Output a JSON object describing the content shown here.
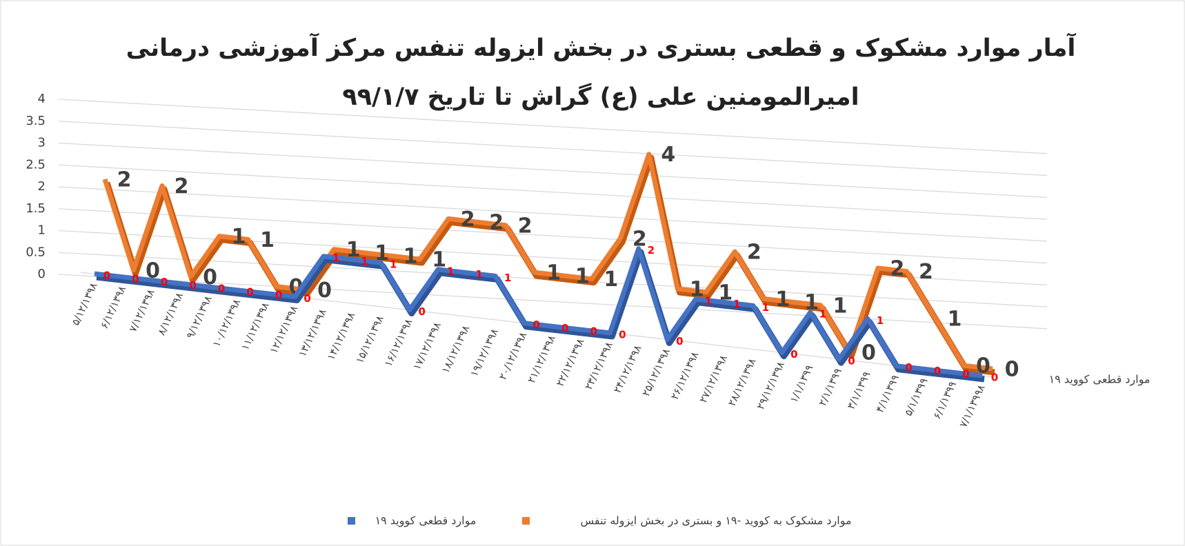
{
  "chart_data": {
    "type": "line3d",
    "title": [
      "آمار موارد مشکوک و قطعی بستری در بخش ایزوله تنفس مرکز آموزشی درمانی",
      "امیرالمومنین علی (ع) گراش تا تاریخ ۹۹/۱/۷"
    ],
    "categories": [
      "۵/۱۲/۱۳۹۸",
      "۶/۱۲/۱۳۹۸",
      "۷/۱۲/۱۳۹۸",
      "۸/۱۲/۱۳۹۸",
      "۹/۱۲/۱۳۹۸",
      "۱۰/۱۲/۱۳۹۸",
      "۱۱/۱۲/۱۳۹۸",
      "۱۲/۱۲/۱۳۹۸",
      "۱۳/۱۲/۱۳۹۸",
      "۱۴/۱۲/۱۳۹۸",
      "۱۵/۱۲/۱۳۹۸",
      "۱۶/۱۲/۱۳۹۸",
      "۱۷/۱۲/۱۳۹۸",
      "۱۸/۱۲/۱۳۹۸",
      "۱۹/۱۲/۱۳۹۸",
      "۲۰/۱۲/۱۳۹۸",
      "۲۱/۱۲/۱۳۹۸",
      "۲۲/۱۲/۱۳۹۸",
      "۲۳/۱۲/۱۳۹۸",
      "۲۴/۱۲/۱۳۹۸",
      "۲۵/۱۲/۱۳۹۸",
      "۲۶/۱۲/۱۳۹۸",
      "۲۷/۱۲/۱۳۹۸",
      "۲۸/۱۲/۱۳۹۸",
      "۲۹/۱۲/۱۳۹۸",
      "۱/۱/۱۳۹۹",
      "۲/۱/۱۳۹۹",
      "۳/۱/۱۳۹۹",
      "۴/۱/۱۳۹۹",
      "۵/۱/۱۳۹۹",
      "۶/۱/۱۳۹۹",
      "۷/۱/۱۳۹۹۸"
    ],
    "series": [
      {
        "name": "موارد قطعی کووید ۱۹",
        "color": "#4472c4",
        "shade": "#2f5597",
        "label_color": "#ff0000",
        "values": [
          0,
          0,
          0,
          0,
          0,
          0,
          0,
          0,
          1,
          1,
          1,
          0,
          1,
          1,
          1,
          0,
          0,
          0,
          0,
          2,
          0,
          1,
          1,
          1,
          0,
          1,
          0,
          1,
          0,
          0,
          0,
          0
        ]
      },
      {
        "name": "موارد مشکوک به کووید -۱۹ و بستری در بخش ایزوله تنفس",
        "color": "#ed7d31",
        "shade": "#c55a11",
        "label_color": "#404040",
        "values": [
          2,
          0,
          2,
          0,
          1,
          1,
          0,
          0,
          1,
          1,
          1,
          1,
          2,
          2,
          2,
          1,
          1,
          1,
          2,
          4,
          1,
          1,
          2,
          1,
          1,
          1,
          0,
          2,
          2,
          1,
          0,
          0
        ]
      }
    ],
    "ylim": [
      0,
      4
    ],
    "yticks": [
      0,
      0.5,
      1,
      1.5,
      2,
      2.5,
      3,
      3.5,
      4
    ],
    "grid": true
  }
}
